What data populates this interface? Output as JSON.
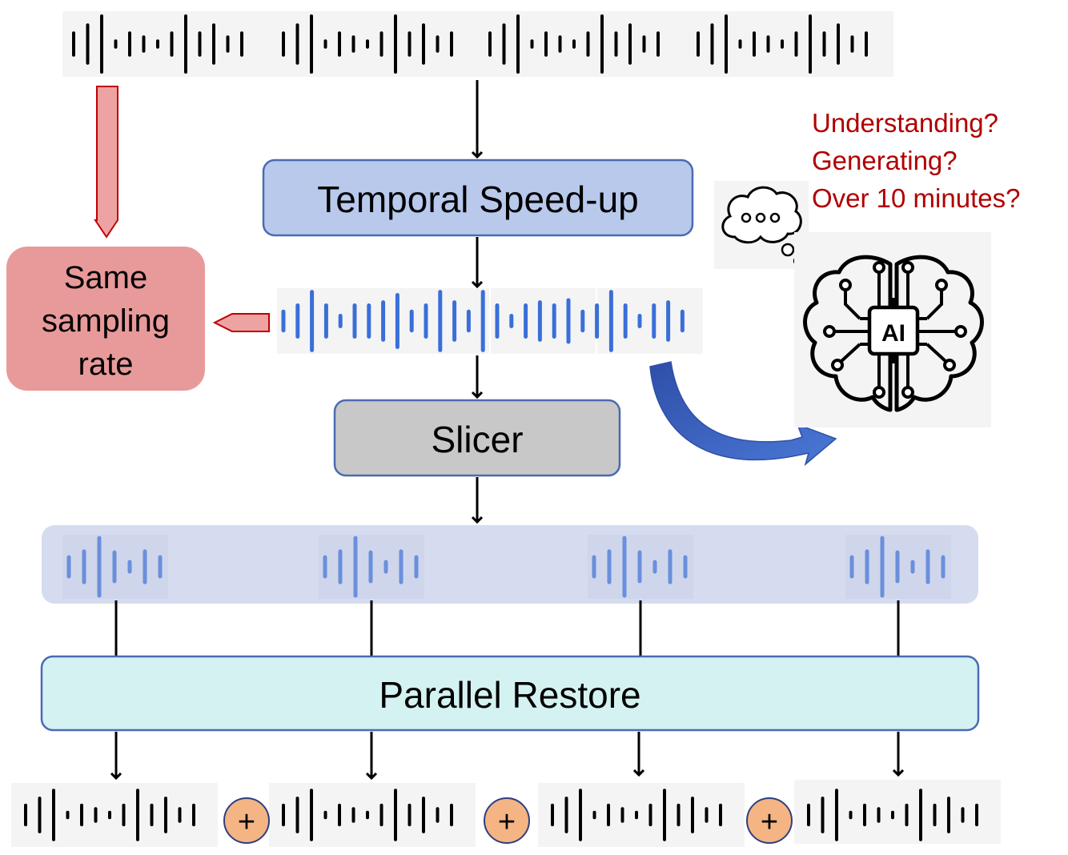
{
  "nodes": {
    "temporal_speedup": "Temporal Speed-up",
    "slicer": "Slicer",
    "parallel_restore": "Parallel Restore",
    "same_sampling_rate": [
      "Same",
      "sampling",
      "rate"
    ]
  },
  "questions": [
    "Understanding?",
    "Generating?",
    "Over 10 minutes?"
  ],
  "ai_label": "AI",
  "plus_symbol": "+",
  "colors": {
    "waveform_black": "#000000",
    "waveform_blue": "#3a6fd8",
    "waveform_light_blue": "#6a8fdc",
    "temporal_box": "#b8c9ec",
    "slicer_box": "#c8c8c8",
    "restore_box": "#d4f2f2",
    "sampling_box": "#e89a9a",
    "question_text": "#b00000",
    "plus_circle": "#f4b484"
  },
  "icons": [
    "thought-bubble-icon",
    "ai-brain-icon",
    "curved-arrow-icon"
  ]
}
